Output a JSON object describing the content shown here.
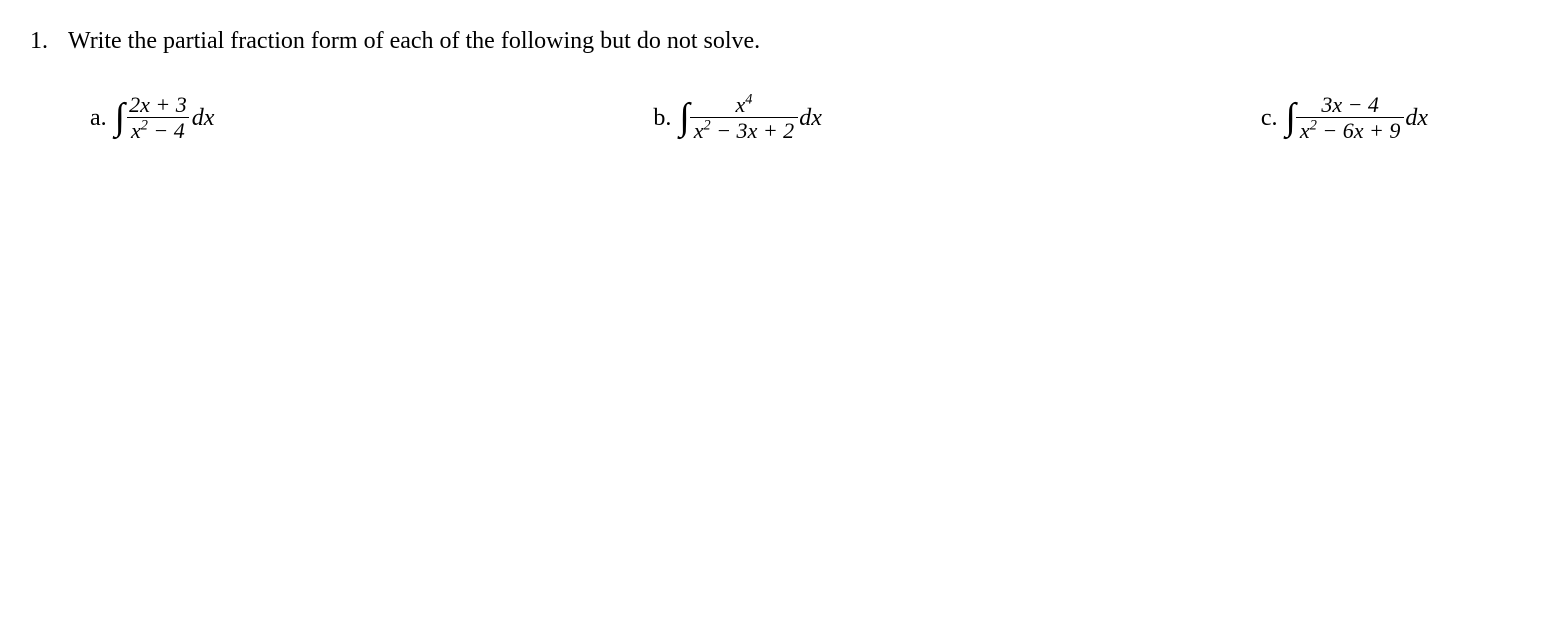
{
  "question": {
    "number": "1.",
    "prompt": "Write the partial fraction form of each of the following but do not solve."
  },
  "parts": {
    "a": {
      "label": "a.",
      "numerator_html": "2<i>x</i> + 3",
      "denominator_html": "<i>x</i><sup>2</sup> − 4",
      "differential": "dx"
    },
    "b": {
      "label": "b.",
      "numerator_html": "<i>x</i><sup>4</sup>",
      "denominator_html": "<i>x</i><sup>2</sup> − 3<i>x</i> + 2",
      "differential": "dx"
    },
    "c": {
      "label": "c.",
      "numerator_html": "3<i>x</i>  −  4",
      "denominator_html": "<i>x</i><sup>2</sup> − 6<i>x</i> + 9",
      "differential": "dx"
    }
  },
  "styling": {
    "font_family": "Times New Roman",
    "text_color": "#000000",
    "background_color": "#ffffff",
    "prompt_fontsize": 24,
    "part_label_fontsize": 24,
    "fraction_fontsize": 22,
    "integral_fontsize": 38
  }
}
